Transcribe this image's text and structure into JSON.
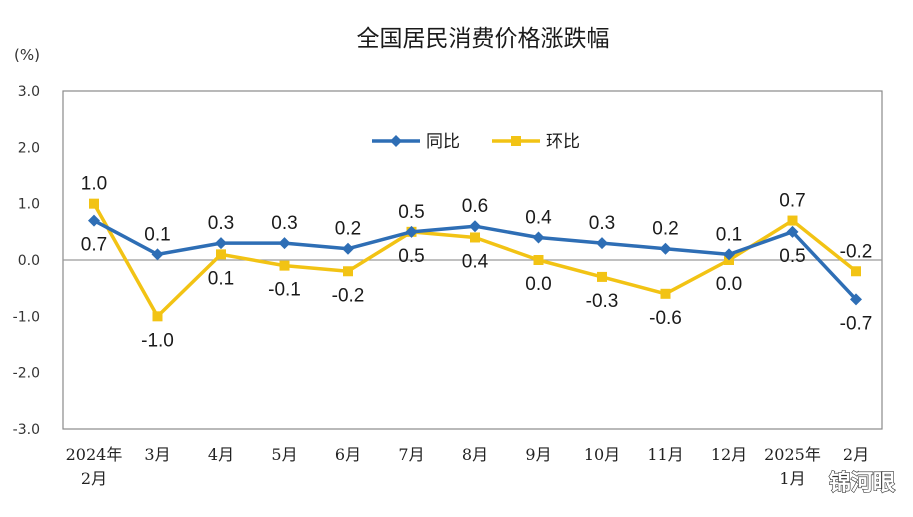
{
  "chart_data": {
    "type": "line",
    "title": "全国居民消费价格涨跌幅",
    "unit": "(%)",
    "xlabel": "",
    "ylabel": "",
    "ylim": [
      -3.0,
      3.0
    ],
    "yticks": [
      "3.0",
      "2.0",
      "1.0",
      "0.0",
      "-1.0",
      "-2.0",
      "-3.0"
    ],
    "ytick_values": [
      3.0,
      2.0,
      1.0,
      0.0,
      -1.0,
      -2.0,
      -3.0
    ],
    "categories": [
      [
        "2024年",
        "2月"
      ],
      [
        "3月"
      ],
      [
        "4月"
      ],
      [
        "5月"
      ],
      [
        "6月"
      ],
      [
        "7月"
      ],
      [
        "8月"
      ],
      [
        "9月"
      ],
      [
        "10月"
      ],
      [
        "11月"
      ],
      [
        "12月"
      ],
      [
        "2025年",
        "1月"
      ],
      [
        "2月"
      ]
    ],
    "grid": false,
    "legend_position": "top-center",
    "series": [
      {
        "name": "同比",
        "color": "#2e6eb5",
        "marker": "diamond",
        "values": [
          0.7,
          0.1,
          0.3,
          0.3,
          0.2,
          0.5,
          0.6,
          0.4,
          0.3,
          0.2,
          0.1,
          0.5,
          -0.7
        ],
        "labels": [
          "0.7",
          "0.1",
          "0.3",
          "0.3",
          "0.2",
          "0.5",
          "0.6",
          "0.4",
          "0.3",
          "0.2",
          "0.1",
          "0.5",
          "-0.7"
        ]
      },
      {
        "name": "环比",
        "color": "#f2c314",
        "marker": "square",
        "values": [
          1.0,
          -1.0,
          0.1,
          -0.1,
          -0.2,
          0.5,
          0.4,
          0.0,
          -0.3,
          -0.6,
          0.0,
          0.7,
          -0.2
        ],
        "labels": [
          "1.0",
          "-1.0",
          "0.1",
          "-0.1",
          "-0.2",
          "0.5",
          "0.4",
          "0.0",
          "-0.3",
          "-0.6",
          "0.0",
          "0.7",
          "-0.2"
        ]
      }
    ]
  },
  "watermark": "锦河眼"
}
